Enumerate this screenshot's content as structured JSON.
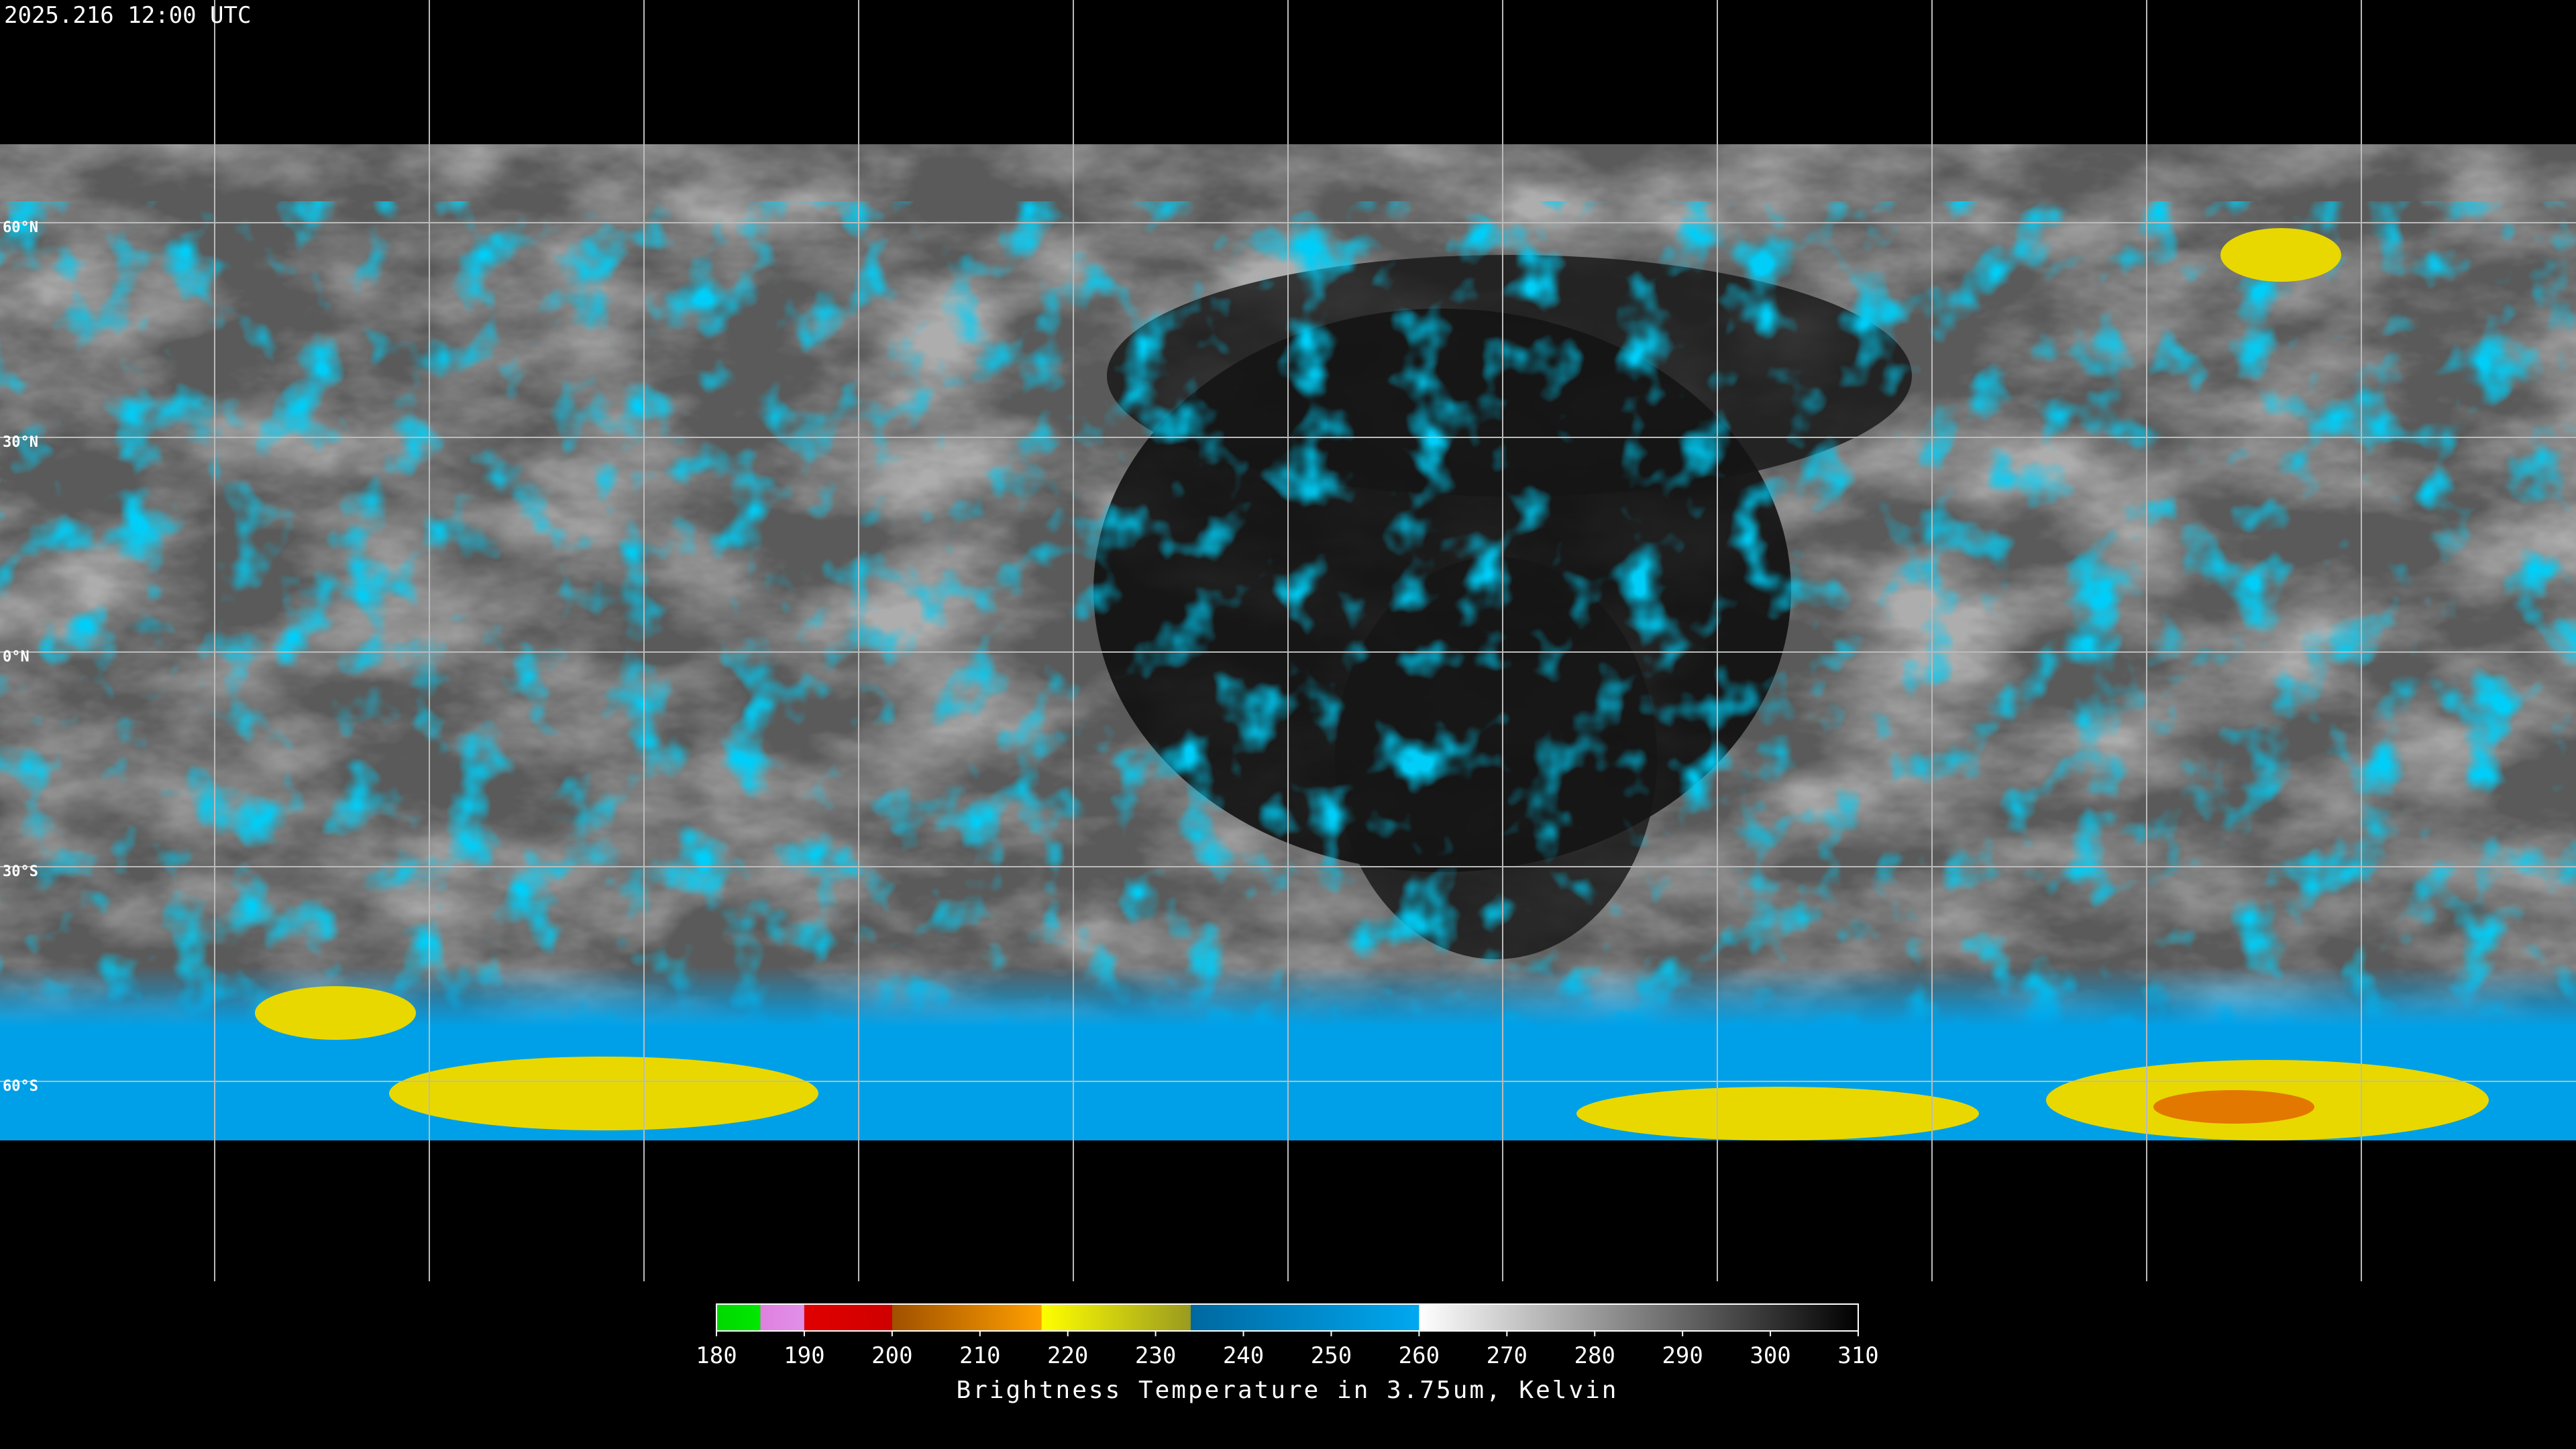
{
  "header": {
    "title": "2025.216 12:00 UTC"
  },
  "map": {
    "lat_labels": [
      {
        "value": 60,
        "label": "60°N"
      },
      {
        "value": 30,
        "label": "30°N"
      },
      {
        "value": 0,
        "label": "0°N"
      },
      {
        "value": -30,
        "label": "30°S"
      },
      {
        "value": -60,
        "label": "60°S"
      }
    ]
  },
  "colorbar": {
    "label": "Brightness Temperature in 3.75um, Kelvin",
    "range": [
      180,
      310
    ],
    "ticks": [
      180,
      190,
      200,
      210,
      220,
      230,
      240,
      250,
      260,
      270,
      280,
      290,
      300,
      310
    ],
    "segments": [
      {
        "from": 180,
        "to": 185,
        "colors": [
          "#00d800",
          "#00e800"
        ]
      },
      {
        "from": 185,
        "to": 190,
        "colors": [
          "#e080e0",
          "#e090e8"
        ]
      },
      {
        "from": 190,
        "to": 200,
        "colors": [
          "#e00000",
          "#d00000"
        ]
      },
      {
        "from": 200,
        "to": 217,
        "colors": [
          "#a05000",
          "#ffa000"
        ]
      },
      {
        "from": 217,
        "to": 234,
        "colors": [
          "#ffff00",
          "#9a9a20"
        ]
      },
      {
        "from": 234,
        "to": 260,
        "colors": [
          "#0068a0",
          "#00a8f0"
        ]
      },
      {
        "from": 260,
        "to": 310,
        "colors": [
          "#ffffff",
          "#000000"
        ]
      }
    ]
  }
}
